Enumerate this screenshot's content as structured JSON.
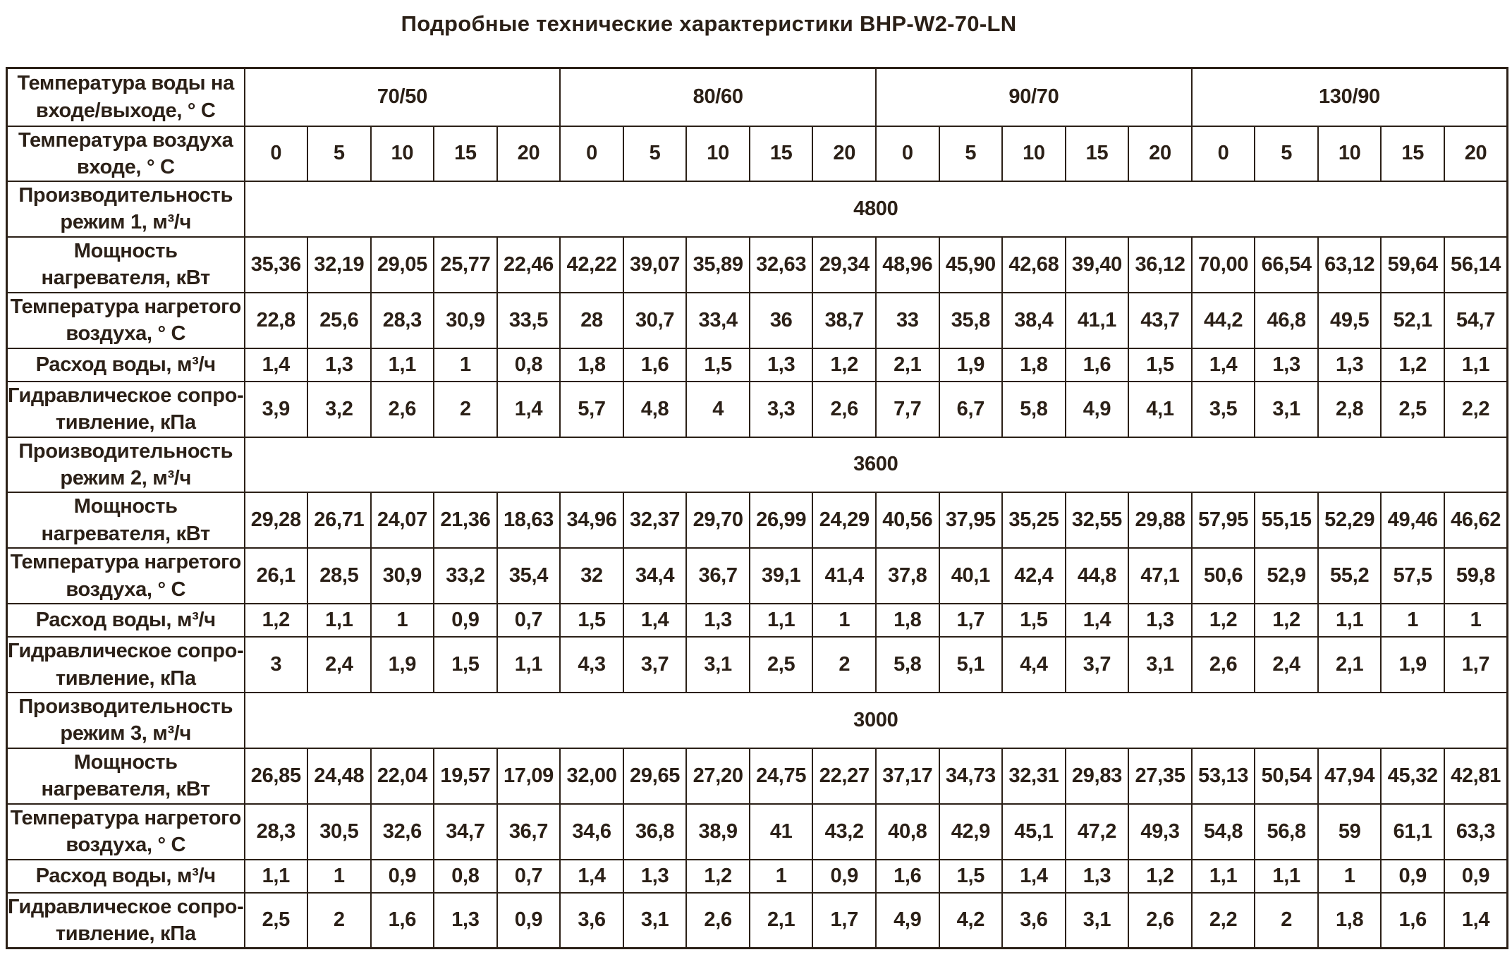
{
  "title": "Подробные технические характеристики BHP-W2-70-LN",
  "table": {
    "labels": {
      "water_temp": "Температура воды на входе/выходе, ° С",
      "air_temp": "Температура воздуха входе, ° С"
    },
    "water_temp_groups": [
      "70/50",
      "80/60",
      "90/70",
      "130/90"
    ],
    "air_temp_values": [
      "0",
      "5",
      "10",
      "15",
      "20",
      "0",
      "5",
      "10",
      "15",
      "20",
      "0",
      "5",
      "10",
      "15",
      "20",
      "0",
      "5",
      "10",
      "15",
      "20"
    ],
    "modes": [
      {
        "capacity_label": "Производительность режим 1, м³/ч",
        "capacity": "4800",
        "rows": [
          {
            "label": "Мощность нагревателя, кВт",
            "values": [
              "35,36",
              "32,19",
              "29,05",
              "25,77",
              "22,46",
              "42,22",
              "39,07",
              "35,89",
              "32,63",
              "29,34",
              "48,96",
              "45,90",
              "42,68",
              "39,40",
              "36,12",
              "70,00",
              "66,54",
              "63,12",
              "59,64",
              "56,14"
            ]
          },
          {
            "label": "Температура нагретого воздуха, ° С",
            "values": [
              "22,8",
              "25,6",
              "28,3",
              "30,9",
              "33,5",
              "28",
              "30,7",
              "33,4",
              "36",
              "38,7",
              "33",
              "35,8",
              "38,4",
              "41,1",
              "43,7",
              "44,2",
              "46,8",
              "49,5",
              "52,1",
              "54,7"
            ]
          },
          {
            "label": "Расход воды, м³/ч",
            "values": [
              "1,4",
              "1,3",
              "1,1",
              "1",
              "0,8",
              "1,8",
              "1,6",
              "1,5",
              "1,3",
              "1,2",
              "2,1",
              "1,9",
              "1,8",
              "1,6",
              "1,5",
              "1,4",
              "1,3",
              "1,3",
              "1,2",
              "1,1"
            ]
          },
          {
            "label": "Гидравлическое сопро-тивление, кПа",
            "values": [
              "3,9",
              "3,2",
              "2,6",
              "2",
              "1,4",
              "5,7",
              "4,8",
              "4",
              "3,3",
              "2,6",
              "7,7",
              "6,7",
              "5,8",
              "4,9",
              "4,1",
              "3,5",
              "3,1",
              "2,8",
              "2,5",
              "2,2"
            ]
          }
        ]
      },
      {
        "capacity_label": "Производительность режим 2, м³/ч",
        "capacity": "3600",
        "rows": [
          {
            "label": "Мощность нагревателя, кВт",
            "values": [
              "29,28",
              "26,71",
              "24,07",
              "21,36",
              "18,63",
              "34,96",
              "32,37",
              "29,70",
              "26,99",
              "24,29",
              "40,56",
              "37,95",
              "35,25",
              "32,55",
              "29,88",
              "57,95",
              "55,15",
              "52,29",
              "49,46",
              "46,62"
            ]
          },
          {
            "label": "Температура нагретого воздуха, ° С",
            "values": [
              "26,1",
              "28,5",
              "30,9",
              "33,2",
              "35,4",
              "32",
              "34,4",
              "36,7",
              "39,1",
              "41,4",
              "37,8",
              "40,1",
              "42,4",
              "44,8",
              "47,1",
              "50,6",
              "52,9",
              "55,2",
              "57,5",
              "59,8"
            ]
          },
          {
            "label": "Расход воды, м³/ч",
            "values": [
              "1,2",
              "1,1",
              "1",
              "0,9",
              "0,7",
              "1,5",
              "1,4",
              "1,3",
              "1,1",
              "1",
              "1,8",
              "1,7",
              "1,5",
              "1,4",
              "1,3",
              "1,2",
              "1,2",
              "1,1",
              "1",
              "1"
            ]
          },
          {
            "label": "Гидравлическое сопро-тивление, кПа",
            "values": [
              "3",
              "2,4",
              "1,9",
              "1,5",
              "1,1",
              "4,3",
              "3,7",
              "3,1",
              "2,5",
              "2",
              "5,8",
              "5,1",
              "4,4",
              "3,7",
              "3,1",
              "2,6",
              "2,4",
              "2,1",
              "1,9",
              "1,7"
            ]
          }
        ]
      },
      {
        "capacity_label": "Производительность режим 3, м³/ч",
        "capacity": "3000",
        "rows": [
          {
            "label": "Мощность нагревателя, кВт",
            "values": [
              "26,85",
              "24,48",
              "22,04",
              "19,57",
              "17,09",
              "32,00",
              "29,65",
              "27,20",
              "24,75",
              "22,27",
              "37,17",
              "34,73",
              "32,31",
              "29,83",
              "27,35",
              "53,13",
              "50,54",
              "47,94",
              "45,32",
              "42,81"
            ]
          },
          {
            "label": "Температура нагретого воздуха, ° С",
            "values": [
              "28,3",
              "30,5",
              "32,6",
              "34,7",
              "36,7",
              "34,6",
              "36,8",
              "38,9",
              "41",
              "43,2",
              "40,8",
              "42,9",
              "45,1",
              "47,2",
              "49,3",
              "54,8",
              "56,8",
              "59",
              "61,1",
              "63,3"
            ]
          },
          {
            "label": "Расход воды, м³/ч",
            "values": [
              "1,1",
              "1",
              "0,9",
              "0,8",
              "0,7",
              "1,4",
              "1,3",
              "1,2",
              "1",
              "0,9",
              "1,6",
              "1,5",
              "1,4",
              "1,3",
              "1,2",
              "1,1",
              "1,1",
              "1",
              "0,9",
              "0,9"
            ]
          },
          {
            "label": "Гидравлическое сопро-тивление, кПа",
            "values": [
              "2,5",
              "2",
              "1,6",
              "1,3",
              "0,9",
              "3,6",
              "3,1",
              "2,6",
              "2,1",
              "1,7",
              "4,9",
              "4,2",
              "3,6",
              "3,1",
              "2,6",
              "2,2",
              "2",
              "1,8",
              "1,6",
              "1,4"
            ]
          }
        ]
      }
    ]
  }
}
